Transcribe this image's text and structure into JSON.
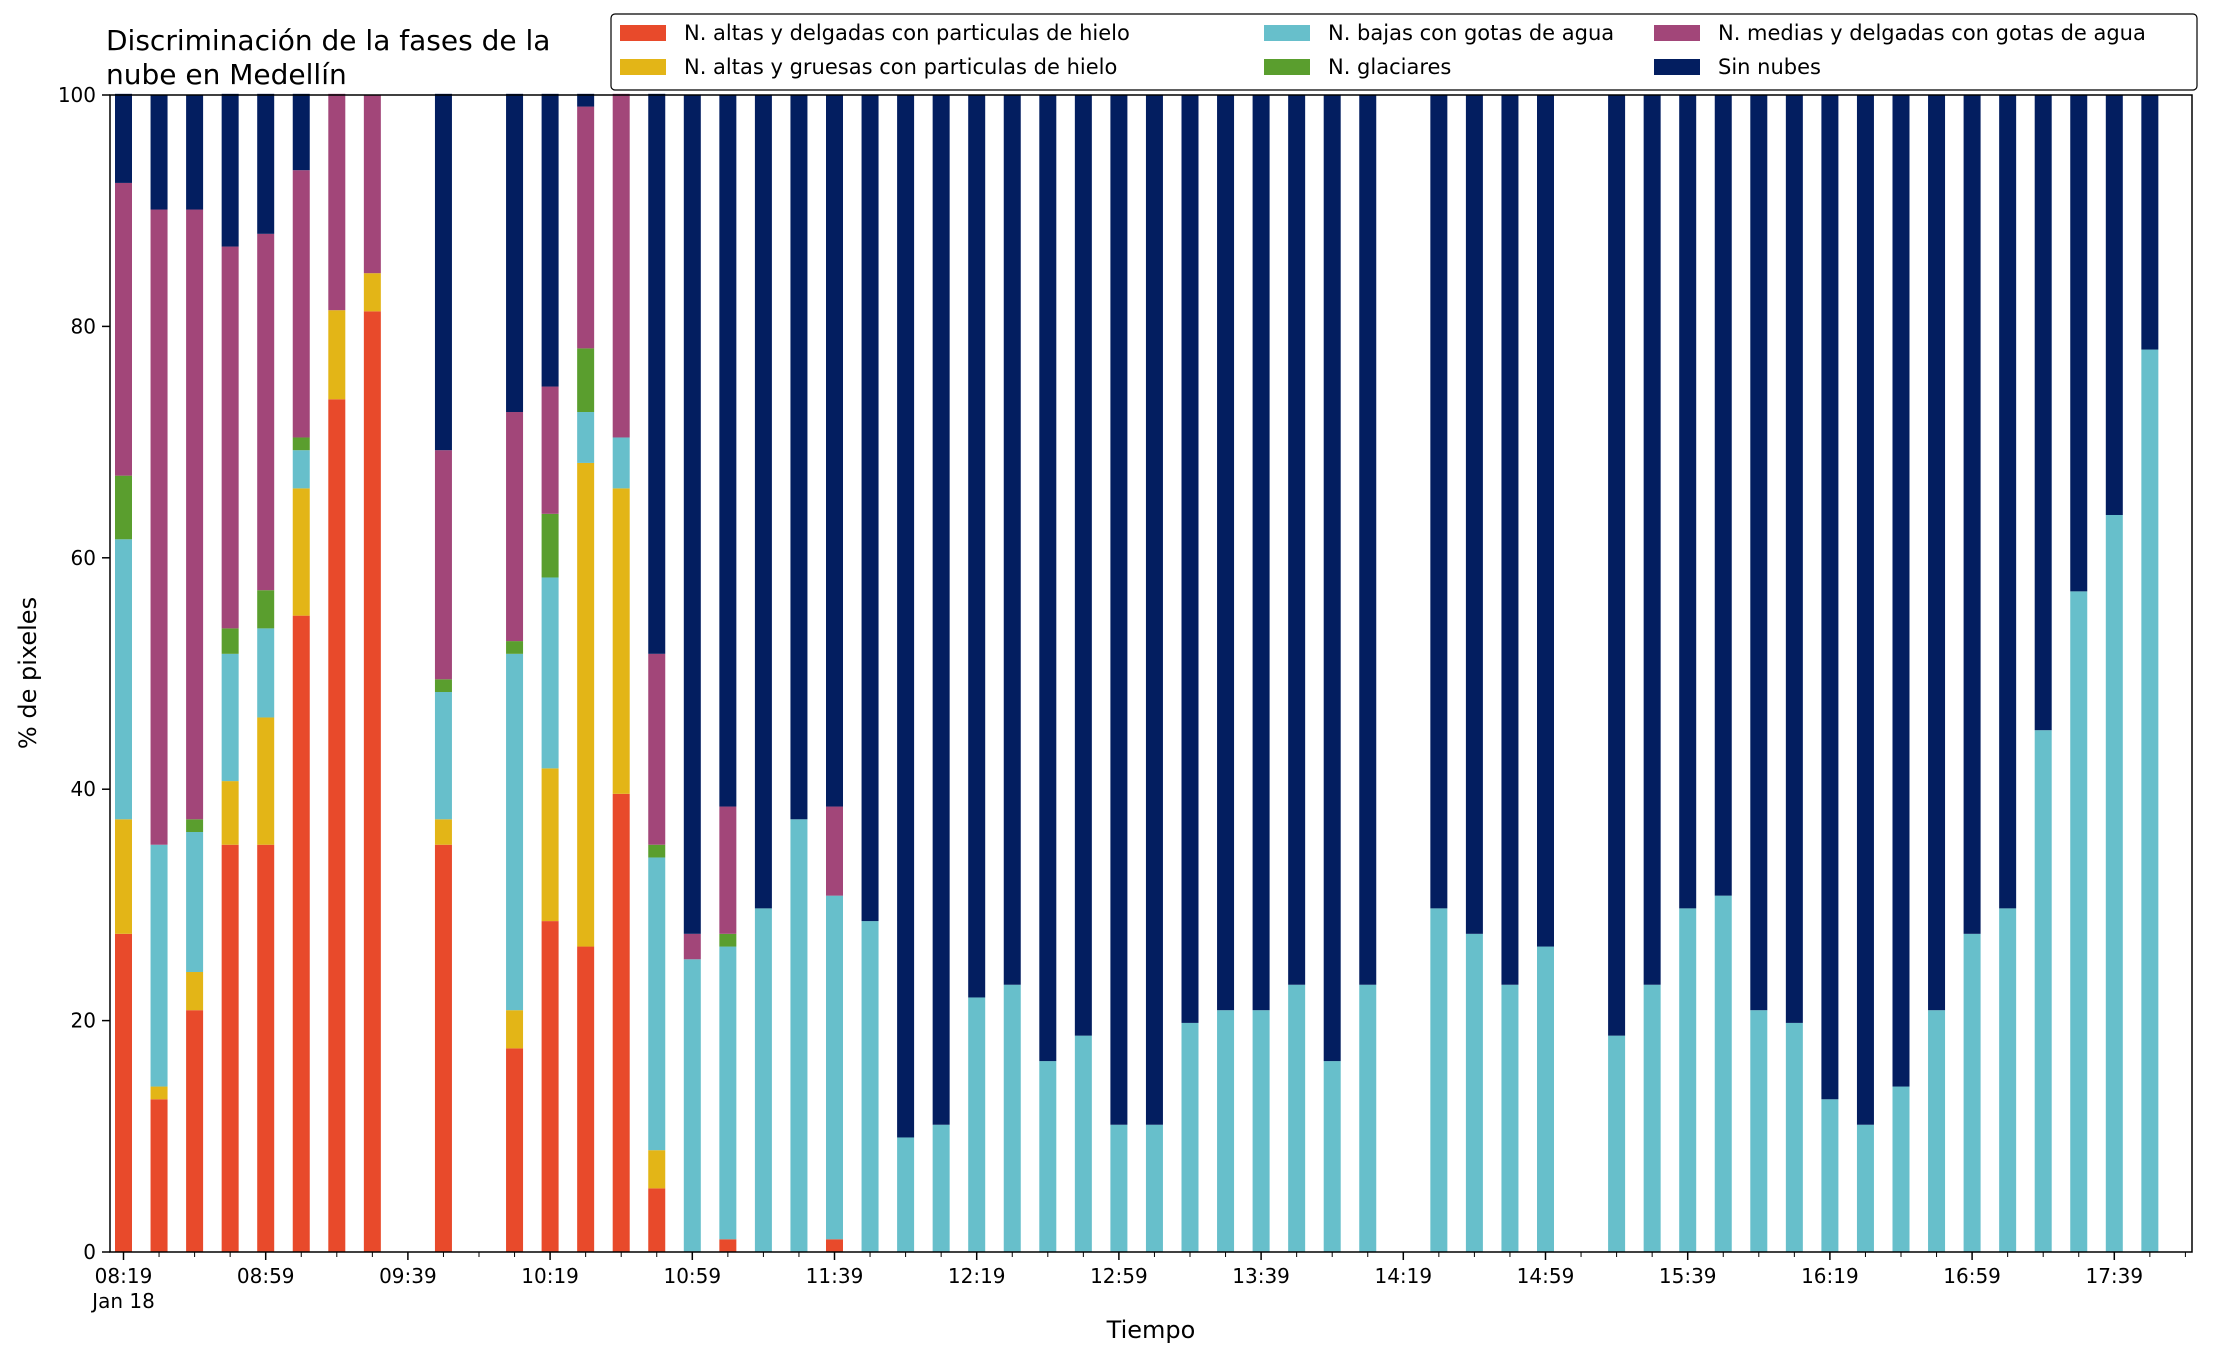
{
  "chart_data": {
    "type": "bar",
    "stacked": true,
    "title": "Discriminación de la fases de la\nnube en Medellín",
    "title_lines": [
      "Discriminación de la fases de la",
      "nube en Medellín"
    ],
    "xlabel": "Tiempo",
    "ylabel": "% de pixeles",
    "ylim": [
      0,
      100
    ],
    "yticks": [
      0,
      20,
      40,
      60,
      80,
      100
    ],
    "x_axis": {
      "start_time": "08:19",
      "interval_minutes": 10,
      "tick_labels": [
        "08:19",
        "08:59",
        "09:39",
        "10:19",
        "10:59",
        "11:39",
        "12:19",
        "12:59",
        "13:39",
        "14:19",
        "14:59",
        "15:39",
        "16:19",
        "16:59",
        "17:39"
      ],
      "first_tick_sublabel": "Jan 18"
    },
    "legend_position": "top-right",
    "grid": false,
    "times": [
      "08:19",
      "08:29",
      "08:39",
      "08:49",
      "08:59",
      "09:09",
      "09:19",
      "09:29",
      "09:39",
      "09:49",
      "09:59",
      "10:09",
      "10:19",
      "10:29",
      "10:39",
      "10:49",
      "10:59",
      "11:09",
      "11:19",
      "11:29",
      "11:39",
      "11:49",
      "11:59",
      "12:09",
      "12:19",
      "12:29",
      "12:39",
      "12:49",
      "12:59",
      "13:09",
      "13:19",
      "13:29",
      "13:39",
      "13:49",
      "13:59",
      "14:09",
      "14:19",
      "14:29",
      "14:39",
      "14:49",
      "14:59",
      "15:09",
      "15:19",
      "15:29",
      "15:39",
      "15:49",
      "15:59",
      "16:09",
      "16:19",
      "16:29",
      "16:39",
      "16:49",
      "16:59",
      "17:09",
      "17:19",
      "17:29",
      "17:39",
      "17:49"
    ],
    "series": [
      {
        "name": "N. altas y delgadas con particulas de hielo",
        "color": "#E84A2B",
        "values": [
          27.5,
          13.2,
          20.9,
          35.2,
          35.2,
          55.0,
          73.7,
          81.3,
          null,
          35.2,
          null,
          17.6,
          28.6,
          26.4,
          39.6,
          5.5,
          0,
          1.1,
          0,
          0,
          1.1,
          0,
          0,
          0,
          0,
          0,
          0,
          0,
          0,
          0,
          0,
          0,
          0,
          0,
          0,
          0,
          null,
          0,
          0,
          0,
          0,
          null,
          0,
          0,
          0,
          0,
          0,
          0,
          0,
          0,
          0,
          0,
          0,
          0,
          0,
          0,
          0,
          0
        ]
      },
      {
        "name": "N. altas y gruesas con particulas de hielo",
        "color": "#E3B517",
        "values": [
          9.9,
          1.1,
          3.3,
          5.5,
          11.0,
          11.0,
          7.7,
          3.3,
          null,
          2.2,
          null,
          3.3,
          13.2,
          41.8,
          26.4,
          3.3,
          0,
          0,
          0,
          0,
          0,
          0,
          0,
          0,
          0,
          0,
          0,
          0,
          0,
          0,
          0,
          0,
          0,
          0,
          0,
          0,
          null,
          0,
          0,
          0,
          0,
          null,
          0,
          0,
          0,
          0,
          0,
          0,
          0,
          0,
          0,
          0,
          0,
          0,
          0,
          0,
          0,
          0
        ]
      },
      {
        "name": "N. bajas con gotas de agua",
        "color": "#67BFCB",
        "values": [
          24.2,
          20.9,
          12.1,
          11.0,
          7.7,
          3.3,
          0,
          0,
          null,
          11.0,
          null,
          30.8,
          16.5,
          4.4,
          4.4,
          25.3,
          25.3,
          25.3,
          29.7,
          37.4,
          29.7,
          28.6,
          9.9,
          11.0,
          22.0,
          23.1,
          16.5,
          18.7,
          11.0,
          11.0,
          19.8,
          20.9,
          20.9,
          23.1,
          16.5,
          23.1,
          null,
          29.7,
          27.5,
          23.1,
          26.4,
          null,
          18.7,
          23.1,
          29.7,
          30.8,
          20.9,
          19.8,
          13.2,
          11.0,
          14.3,
          20.9,
          27.5,
          29.7,
          45.1,
          57.1,
          63.7,
          78.0
        ]
      },
      {
        "name": "N. glaciares",
        "color": "#5A9E2E",
        "values": [
          5.5,
          0,
          1.1,
          2.2,
          3.3,
          1.1,
          0,
          0,
          null,
          1.1,
          null,
          1.1,
          5.5,
          5.5,
          0,
          1.1,
          0,
          1.1,
          0,
          0,
          0,
          0,
          0,
          0,
          0,
          0,
          0,
          0,
          0,
          0,
          0,
          0,
          0,
          0,
          0,
          0,
          null,
          0,
          0,
          0,
          0,
          null,
          0,
          0,
          0,
          0,
          0,
          0,
          0,
          0,
          0,
          0,
          0,
          0,
          0,
          0,
          0,
          0
        ]
      },
      {
        "name": "N. medias y delgadas con gotas de agua",
        "color": "#A24679",
        "values": [
          25.3,
          54.9,
          52.7,
          33.0,
          30.8,
          23.1,
          18.7,
          15.4,
          null,
          19.8,
          null,
          19.8,
          11.0,
          20.9,
          29.7,
          16.5,
          2.2,
          11.0,
          0,
          0,
          7.7,
          0,
          0,
          0,
          0,
          0,
          0,
          0,
          0,
          0,
          0,
          0,
          0,
          0,
          0,
          0,
          null,
          0,
          0,
          0,
          0,
          null,
          0,
          0,
          0,
          0,
          0,
          0,
          0,
          0,
          0,
          0,
          0,
          0,
          0,
          0,
          0,
          0
        ]
      },
      {
        "name": "Sin nubes",
        "color": "#031E60",
        "values": [
          7.7,
          9.9,
          9.9,
          13.2,
          12.1,
          6.6,
          0,
          0,
          null,
          30.8,
          null,
          27.5,
          25.3,
          1.1,
          0,
          48.4,
          72.5,
          61.5,
          70.3,
          62.6,
          61.5,
          71.4,
          90.1,
          89.0,
          78.0,
          76.9,
          83.5,
          81.3,
          89.0,
          89.0,
          80.2,
          79.1,
          79.1,
          76.9,
          83.5,
          76.9,
          null,
          70.3,
          72.5,
          76.9,
          73.6,
          null,
          81.3,
          76.9,
          70.3,
          69.2,
          79.1,
          80.2,
          86.8,
          89.0,
          85.7,
          79.1,
          72.5,
          70.3,
          54.9,
          42.9,
          36.3,
          22.0
        ]
      }
    ]
  }
}
